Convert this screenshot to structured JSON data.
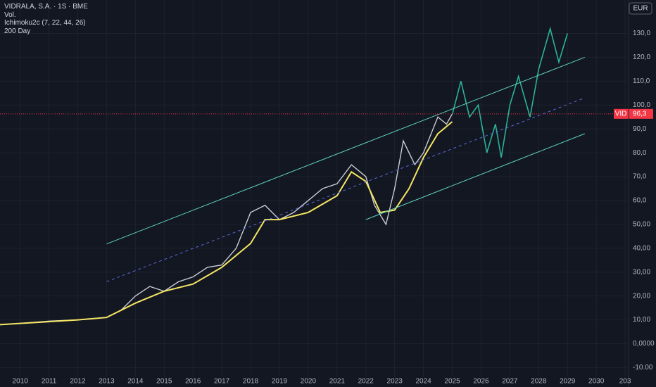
{
  "chart_data": {
    "type": "line",
    "title": "VIDRALA, S.A. · 1S · BME",
    "indicators": [
      "Vol.",
      "Ichimoku2c (7, 22, 44, 26)",
      "200 Day"
    ],
    "currency": "EUR",
    "xlim": [
      2009.3,
      2031.12
    ],
    "ylim": [
      -14,
      144
    ],
    "xticks": [
      2010,
      2011,
      2012,
      2013,
      2014,
      2015,
      2016,
      2017,
      2018,
      2019,
      2020,
      2021,
      2022,
      2023,
      2024,
      2025,
      2026,
      2027,
      2028,
      2029,
      2030,
      {
        "value": 2031,
        "label": "203"
      }
    ],
    "yticks": [
      {
        "value": -10,
        "label": "-10.00"
      },
      {
        "value": 0,
        "label": "0,0000"
      },
      {
        "value": 10,
        "label": "10,00"
      },
      {
        "value": 20,
        "label": "20,00"
      },
      {
        "value": 30,
        "label": "30,00"
      },
      {
        "value": 40,
        "label": "40,00"
      },
      {
        "value": 50,
        "label": "50,00"
      },
      {
        "value": 60,
        "label": "60,0"
      },
      {
        "value": 70,
        "label": "70,0"
      },
      {
        "value": 80,
        "label": "80,0"
      },
      {
        "value": 90,
        "label": "90,0"
      },
      {
        "value": 100,
        "label": "100,0"
      },
      {
        "value": 110,
        "label": "110,0"
      },
      {
        "value": 120,
        "label": "120,0"
      },
      {
        "value": 130,
        "label": "130,0"
      }
    ],
    "grid": true,
    "series": [
      {
        "color": "#c9ccd4",
        "width": 1.4,
        "x": [
          2009.3,
          2010,
          2011,
          2012,
          2013,
          2013.5,
          2014,
          2014.5,
          2015,
          2015.5,
          2016,
          2016.5,
          2017,
          2017.5,
          2018,
          2018.5,
          2019,
          2019.5,
          2020,
          2020.5,
          2021,
          2021.5,
          2022,
          2022.3,
          2022.7,
          2023,
          2023.3,
          2023.7,
          2024,
          2024.5,
          2024.8,
          2025
        ],
        "values": [
          8,
          8.5,
          9.5,
          10,
          11,
          14,
          20,
          24,
          22,
          26,
          28,
          32,
          33,
          40,
          55,
          58,
          52,
          55,
          60,
          65,
          67,
          75,
          70,
          58,
          50,
          65,
          85,
          75,
          80,
          95,
          92,
          96.3
        ]
      },
      {
        "color": "#2bb39a",
        "width": 1.6,
        "x": [
          2025,
          2025.3,
          2025.6,
          2025.9,
          2026.2,
          2026.5,
          2026.7,
          2027,
          2027.3,
          2027.7,
          2028,
          2028.4,
          2028.7,
          2029
        ],
        "values": [
          96,
          110,
          95,
          100,
          80,
          92,
          78,
          100,
          112,
          95,
          115,
          132,
          118,
          130
        ]
      },
      {
        "color": "#f5e663",
        "width": 2,
        "x": [
          2009.3,
          2012,
          2013,
          2014,
          2015,
          2016,
          2017,
          2018,
          2018.5,
          2019,
          2020,
          2021,
          2021.5,
          2022,
          2022.5,
          2023,
          2023.5,
          2024,
          2024.5,
          2025
        ],
        "values": [
          8,
          10,
          11,
          17,
          22,
          25,
          32,
          42,
          52,
          52,
          55,
          62,
          72,
          68,
          55,
          56,
          65,
          78,
          88,
          93
        ]
      },
      {
        "color": "#5fd3c0",
        "width": 1,
        "x": [
          2013,
          2029.6
        ],
        "values": [
          41.8,
          120
        ]
      },
      {
        "color": "#5fd3c0",
        "width": 1,
        "x": [
          2022,
          2029.6
        ],
        "values": [
          52,
          88
        ]
      },
      {
        "color": "#5b6bdc",
        "width": 1,
        "dashed": true,
        "x": [
          2013,
          2029.6
        ],
        "values": [
          26,
          103
        ]
      }
    ],
    "price_label": {
      "symbol": "VID",
      "value": 96.3,
      "label": "96,3"
    }
  }
}
